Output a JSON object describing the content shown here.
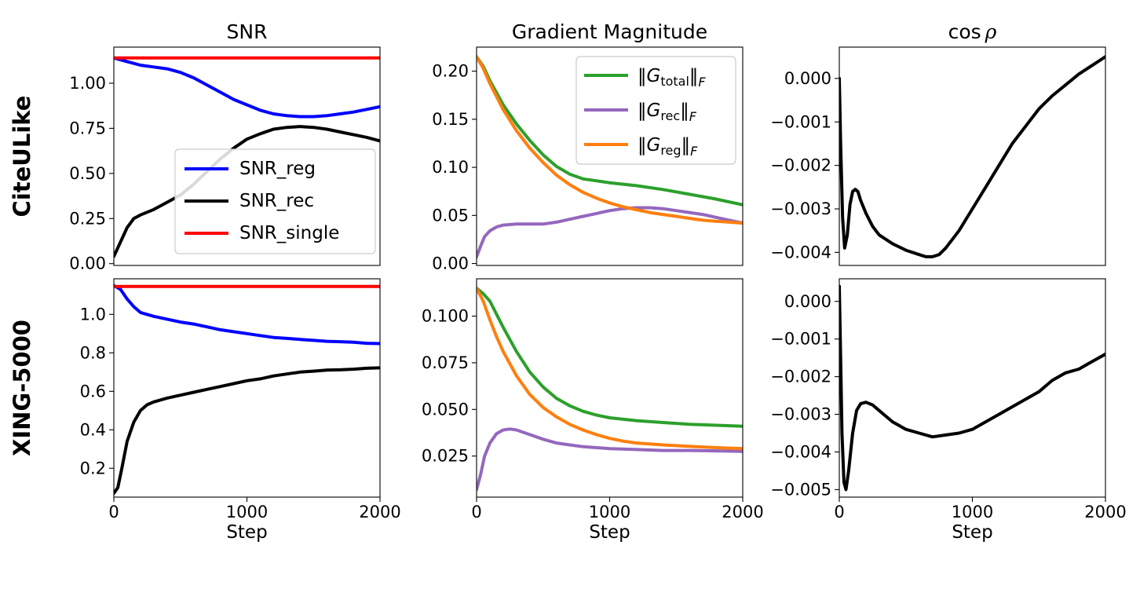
{
  "figure": {
    "row_labels": [
      "CiteULike",
      "XING-5000"
    ],
    "col_titles": [
      "SNR",
      "Gradient Magnitude",
      "cos ρ"
    ]
  },
  "chart_data": [
    {
      "type": "line",
      "row": 0,
      "col": 0,
      "title": "SNR",
      "xlabel": "",
      "ylabel": "",
      "xlim": [
        0,
        2000
      ],
      "ylim": [
        -0.01,
        1.2
      ],
      "xticks": [],
      "xtick_labels": [],
      "yticks": [
        0.0,
        0.25,
        0.5,
        0.75,
        1.0
      ],
      "ytick_labels": [
        "0.00",
        "0.25",
        "0.50",
        "0.75",
        "1.00"
      ],
      "grid": false,
      "legend": "center-right",
      "series": [
        {
          "name": "SNR_reg",
          "color": "#0000ff",
          "x": [
            0,
            100,
            200,
            300,
            400,
            500,
            600,
            700,
            800,
            900,
            1000,
            1100,
            1200,
            1300,
            1400,
            1500,
            1600,
            1700,
            1800,
            1900,
            2000
          ],
          "y": [
            1.14,
            1.12,
            1.1,
            1.09,
            1.08,
            1.06,
            1.03,
            0.99,
            0.95,
            0.91,
            0.88,
            0.85,
            0.83,
            0.82,
            0.815,
            0.815,
            0.82,
            0.83,
            0.84,
            0.855,
            0.87
          ]
        },
        {
          "name": "SNR_rec",
          "color": "#000000",
          "x": [
            0,
            50,
            100,
            150,
            200,
            300,
            400,
            500,
            600,
            700,
            800,
            900,
            1000,
            1100,
            1200,
            1300,
            1400,
            1500,
            1600,
            1700,
            1800,
            1900,
            2000
          ],
          "y": [
            0.04,
            0.12,
            0.2,
            0.25,
            0.27,
            0.3,
            0.34,
            0.38,
            0.44,
            0.51,
            0.58,
            0.64,
            0.69,
            0.72,
            0.745,
            0.755,
            0.76,
            0.755,
            0.745,
            0.73,
            0.715,
            0.7,
            0.68
          ]
        },
        {
          "name": "SNR_single",
          "color": "#ff0000",
          "x": [
            0,
            2000
          ],
          "y": [
            1.14,
            1.14
          ]
        }
      ]
    },
    {
      "type": "line",
      "row": 0,
      "col": 1,
      "title": "Gradient Magnitude",
      "xlabel": "",
      "ylabel": "",
      "xlim": [
        0,
        2000
      ],
      "ylim": [
        -0.002,
        0.225
      ],
      "xticks": [],
      "xtick_labels": [],
      "yticks": [
        0.0,
        0.05,
        0.1,
        0.15,
        0.2
      ],
      "ytick_labels": [
        "0.00",
        "0.05",
        "0.10",
        "0.15",
        "0.20"
      ],
      "grid": false,
      "legend": "top-right",
      "series": [
        {
          "name": "total",
          "color": "#2ca02c",
          "x": [
            0,
            50,
            100,
            200,
            300,
            400,
            500,
            600,
            700,
            800,
            900,
            1000,
            1200,
            1400,
            1600,
            1800,
            2000
          ],
          "y": [
            0.215,
            0.205,
            0.19,
            0.165,
            0.145,
            0.128,
            0.113,
            0.101,
            0.093,
            0.088,
            0.086,
            0.084,
            0.081,
            0.077,
            0.072,
            0.067,
            0.061
          ]
        },
        {
          "name": "rec",
          "color": "#9467bd",
          "x": [
            0,
            30,
            60,
            100,
            150,
            200,
            300,
            400,
            500,
            600,
            700,
            800,
            900,
            1000,
            1100,
            1200,
            1300,
            1400,
            1500,
            1600,
            1700,
            1800,
            1900,
            2000
          ],
          "y": [
            0.007,
            0.018,
            0.028,
            0.034,
            0.038,
            0.04,
            0.041,
            0.041,
            0.041,
            0.043,
            0.046,
            0.049,
            0.052,
            0.055,
            0.057,
            0.058,
            0.058,
            0.057,
            0.055,
            0.053,
            0.051,
            0.048,
            0.045,
            0.042
          ]
        },
        {
          "name": "reg",
          "color": "#ff7f0e",
          "x": [
            0,
            50,
            100,
            200,
            300,
            400,
            500,
            600,
            700,
            800,
            900,
            1000,
            1100,
            1200,
            1300,
            1400,
            1500,
            1600,
            1700,
            1800,
            1900,
            2000
          ],
          "y": [
            0.215,
            0.203,
            0.187,
            0.16,
            0.138,
            0.12,
            0.105,
            0.092,
            0.082,
            0.074,
            0.068,
            0.063,
            0.059,
            0.056,
            0.053,
            0.051,
            0.049,
            0.047,
            0.045,
            0.044,
            0.043,
            0.042
          ]
        }
      ]
    },
    {
      "type": "line",
      "row": 0,
      "col": 2,
      "title": "cos ρ",
      "xlabel": "",
      "ylabel": "",
      "xlim": [
        0,
        2000
      ],
      "ylim": [
        -0.0043,
        0.00072
      ],
      "xticks": [],
      "xtick_labels": [],
      "yticks": [
        0.0,
        -0.001,
        -0.002,
        -0.003,
        -0.004
      ],
      "ytick_labels": [
        "0.000",
        "−0.001",
        "−0.002",
        "−0.003",
        "−0.004"
      ],
      "grid": false,
      "legend": "none",
      "series": [
        {
          "name": "",
          "color": "#000000",
          "x": [
            0,
            10,
            25,
            40,
            60,
            80,
            100,
            120,
            140,
            160,
            200,
            250,
            300,
            400,
            500,
            600,
            650,
            700,
            750,
            800,
            900,
            1000,
            1100,
            1200,
            1300,
            1400,
            1500,
            1600,
            1700,
            1800,
            1900,
            2000
          ],
          "y": [
            0.0,
            -0.0015,
            -0.0032,
            -0.0039,
            -0.0036,
            -0.0029,
            -0.0026,
            -0.00255,
            -0.0026,
            -0.0028,
            -0.0031,
            -0.0034,
            -0.0036,
            -0.0038,
            -0.00395,
            -0.00405,
            -0.0041,
            -0.0041,
            -0.00405,
            -0.0039,
            -0.0035,
            -0.003,
            -0.0025,
            -0.002,
            -0.0015,
            -0.0011,
            -0.0007,
            -0.0004,
            -0.00015,
            0.0001,
            0.0003,
            0.0005
          ]
        }
      ]
    },
    {
      "type": "line",
      "row": 1,
      "col": 0,
      "title": "",
      "xlabel": "Step",
      "ylabel": "",
      "xlim": [
        0,
        2000
      ],
      "ylim": [
        0.05,
        1.185
      ],
      "xticks": [
        0,
        1000,
        2000
      ],
      "xtick_labels": [
        "0",
        "1000",
        "2000"
      ],
      "yticks": [
        0.2,
        0.4,
        0.6,
        0.8,
        1.0
      ],
      "ytick_labels": [
        "0.2",
        "0.4",
        "0.6",
        "0.8",
        "1.0"
      ],
      "grid": false,
      "legend": "none",
      "series": [
        {
          "name": "SNR_reg",
          "color": "#0000ff",
          "x": [
            0,
            50,
            100,
            150,
            200,
            300,
            400,
            500,
            600,
            700,
            800,
            900,
            1000,
            1100,
            1200,
            1300,
            1400,
            1500,
            1600,
            1700,
            1800,
            1900,
            2000
          ],
          "y": [
            1.15,
            1.13,
            1.08,
            1.04,
            1.01,
            0.99,
            0.975,
            0.96,
            0.95,
            0.935,
            0.92,
            0.91,
            0.9,
            0.89,
            0.88,
            0.875,
            0.87,
            0.865,
            0.86,
            0.858,
            0.855,
            0.85,
            0.848
          ]
        },
        {
          "name": "SNR_rec",
          "color": "#000000",
          "x": [
            0,
            30,
            60,
            100,
            150,
            200,
            250,
            300,
            400,
            500,
            600,
            700,
            800,
            900,
            1000,
            1100,
            1200,
            1300,
            1400,
            1500,
            1600,
            1700,
            1800,
            1900,
            2000
          ],
          "y": [
            0.07,
            0.1,
            0.2,
            0.34,
            0.44,
            0.5,
            0.53,
            0.545,
            0.565,
            0.58,
            0.595,
            0.61,
            0.625,
            0.64,
            0.655,
            0.665,
            0.68,
            0.69,
            0.7,
            0.705,
            0.71,
            0.712,
            0.715,
            0.72,
            0.722
          ]
        },
        {
          "name": "SNR_single",
          "color": "#ff0000",
          "x": [
            0,
            2000
          ],
          "y": [
            1.145,
            1.145
          ]
        }
      ]
    },
    {
      "type": "line",
      "row": 1,
      "col": 1,
      "title": "",
      "xlabel": "Step",
      "ylabel": "",
      "xlim": [
        0,
        2000
      ],
      "ylim": [
        0.003,
        0.12
      ],
      "xticks": [
        0,
        1000,
        2000
      ],
      "xtick_labels": [
        "0",
        "1000",
        "2000"
      ],
      "yticks": [
        0.025,
        0.05,
        0.075,
        0.1
      ],
      "ytick_labels": [
        "0.025",
        "0.050",
        "0.075",
        "0.100"
      ],
      "grid": false,
      "legend": "none",
      "series": [
        {
          "name": "total",
          "color": "#2ca02c",
          "x": [
            0,
            50,
            100,
            150,
            200,
            300,
            400,
            500,
            600,
            700,
            800,
            900,
            1000,
            1200,
            1400,
            1600,
            1800,
            2000
          ],
          "y": [
            0.115,
            0.112,
            0.108,
            0.101,
            0.094,
            0.081,
            0.07,
            0.062,
            0.056,
            0.052,
            0.049,
            0.047,
            0.0455,
            0.044,
            0.043,
            0.042,
            0.0415,
            0.041
          ]
        },
        {
          "name": "rec",
          "color": "#9467bd",
          "x": [
            0,
            30,
            60,
            100,
            150,
            200,
            250,
            300,
            400,
            500,
            600,
            700,
            800,
            900,
            1000,
            1200,
            1400,
            1600,
            1800,
            2000
          ],
          "y": [
            0.007,
            0.015,
            0.025,
            0.032,
            0.037,
            0.039,
            0.0395,
            0.039,
            0.0365,
            0.034,
            0.032,
            0.031,
            0.03,
            0.0295,
            0.029,
            0.0285,
            0.028,
            0.028,
            0.0278,
            0.0275
          ]
        },
        {
          "name": "reg",
          "color": "#ff7f0e",
          "x": [
            0,
            50,
            100,
            150,
            200,
            300,
            400,
            500,
            600,
            700,
            800,
            900,
            1000,
            1100,
            1200,
            1400,
            1600,
            1800,
            2000
          ],
          "y": [
            0.115,
            0.108,
            0.098,
            0.089,
            0.081,
            0.068,
            0.058,
            0.051,
            0.046,
            0.042,
            0.039,
            0.0365,
            0.0345,
            0.033,
            0.032,
            0.031,
            0.0302,
            0.0295,
            0.029
          ]
        }
      ]
    },
    {
      "type": "line",
      "row": 1,
      "col": 2,
      "title": "",
      "xlabel": "Step",
      "ylabel": "",
      "xlim": [
        0,
        2000
      ],
      "ylim": [
        -0.0052,
        0.0006
      ],
      "xticks": [
        0,
        1000,
        2000
      ],
      "xtick_labels": [
        "0",
        "1000",
        "2000"
      ],
      "yticks": [
        0.0,
        -0.001,
        -0.002,
        -0.003,
        -0.004,
        -0.005
      ],
      "ytick_labels": [
        "0.000",
        "−0.001",
        "−0.002",
        "−0.003",
        "−0.004",
        "−0.005"
      ],
      "grid": false,
      "legend": "none",
      "series": [
        {
          "name": "",
          "color": "#000000",
          "x": [
            0,
            10,
            20,
            35,
            50,
            70,
            100,
            130,
            160,
            200,
            250,
            300,
            400,
            500,
            600,
            700,
            800,
            900,
            1000,
            1100,
            1200,
            1300,
            1400,
            1500,
            1600,
            1700,
            1800,
            1900,
            2000
          ],
          "y": [
            0.0004,
            -0.0015,
            -0.0035,
            -0.0048,
            -0.005,
            -0.0045,
            -0.0035,
            -0.0029,
            -0.00272,
            -0.00268,
            -0.00275,
            -0.0029,
            -0.0032,
            -0.0034,
            -0.0035,
            -0.0036,
            -0.00355,
            -0.0035,
            -0.0034,
            -0.0032,
            -0.003,
            -0.0028,
            -0.0026,
            -0.0024,
            -0.0021,
            -0.0019,
            -0.0018,
            -0.0016,
            -0.0014
          ]
        }
      ]
    }
  ],
  "legends": {
    "snr": [
      "SNR_reg",
      "SNR_rec",
      "SNR_single"
    ],
    "grad": [
      {
        "key": "total",
        "sub": "total"
      },
      {
        "key": "rec",
        "sub": "rec"
      },
      {
        "key": "reg",
        "sub": "reg"
      }
    ]
  }
}
